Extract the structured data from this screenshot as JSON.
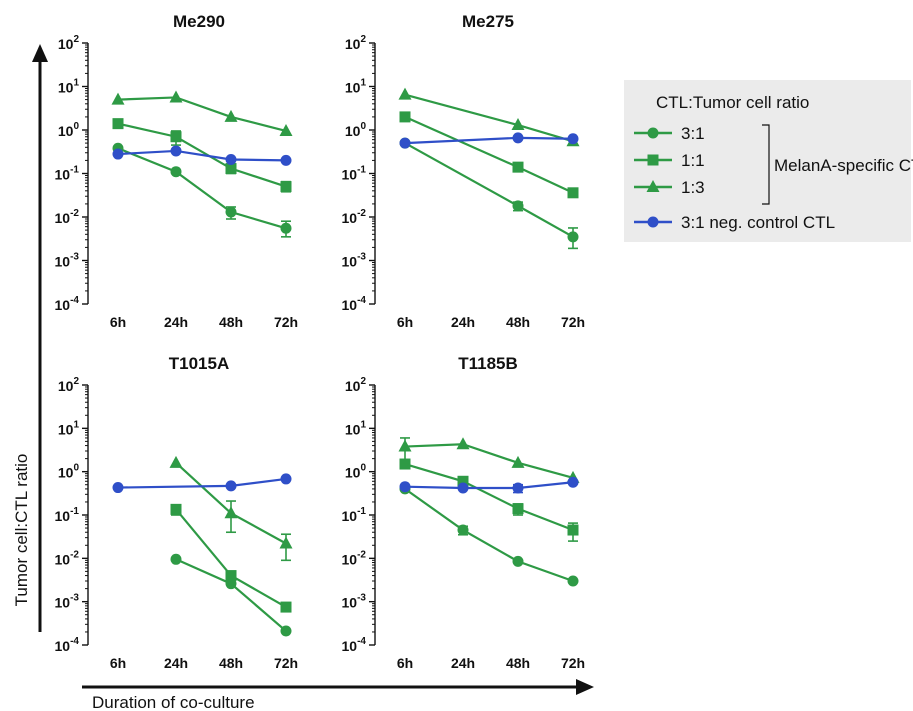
{
  "chart_data": {
    "type": "line",
    "ylabel": "Tumor cell:CTL ratio",
    "xlabel": "Duration of co-culture",
    "yscale": "log",
    "ylim": [
      0.0001,
      100
    ],
    "y_ticks": [
      {
        "base": "10",
        "exp": "2"
      },
      {
        "base": "10",
        "exp": "1"
      },
      {
        "base": "10",
        "exp": "0"
      },
      {
        "base": "10",
        "exp": "-1"
      },
      {
        "base": "10",
        "exp": "-2"
      },
      {
        "base": "10",
        "exp": "-3"
      },
      {
        "base": "10",
        "exp": "-4"
      }
    ],
    "categories": [
      "6h",
      "24h",
      "48h",
      "72h"
    ],
    "legend": {
      "title": "CTL:Tumor cell ratio",
      "bracket_label": "MelanA-specific CTL",
      "entries": [
        {
          "label": "3:1",
          "color": "#2e9a45",
          "marker": "circle"
        },
        {
          "label": "1:1",
          "color": "#2e9a45",
          "marker": "square"
        },
        {
          "label": "1:3",
          "color": "#2e9a45",
          "marker": "triangle"
        },
        {
          "label": "3:1 neg. control CTL",
          "color": "#2f4fc8",
          "marker": "circle"
        }
      ]
    },
    "panels": [
      {
        "title": "Me290",
        "series": [
          {
            "label": "3:1",
            "values": [
              0.38,
              0.11,
              0.013,
              0.0055
            ],
            "err_low": [
              null,
              null,
              0.009,
              0.0035
            ],
            "err_high": [
              null,
              null,
              0.017,
              0.008
            ]
          },
          {
            "label": "1:1",
            "values": [
              1.4,
              0.7,
              0.13,
              0.05
            ],
            "err_low": [
              null,
              0.45,
              0.1,
              0.038
            ],
            "err_high": [
              null,
              0.95,
              0.16,
              0.065
            ]
          },
          {
            "label": "1:3",
            "values": [
              5.0,
              5.6,
              2.0,
              0.95
            ],
            "err_low": [
              null,
              null,
              null,
              null
            ],
            "err_high": [
              null,
              null,
              null,
              null
            ]
          },
          {
            "label": "3:1 neg. control CTL",
            "values": [
              0.28,
              0.33,
              0.21,
              0.2
            ],
            "err_low": [
              null,
              null,
              null,
              null
            ],
            "err_high": [
              null,
              null,
              null,
              null
            ]
          }
        ]
      },
      {
        "title": "Me275",
        "series": [
          {
            "label": "3:1",
            "values": [
              0.5,
              null,
              0.018,
              0.0035
            ],
            "err_low": [
              null,
              null,
              0.014,
              0.0019
            ],
            "err_high": [
              null,
              null,
              0.022,
              0.0056
            ]
          },
          {
            "label": "1:1",
            "values": [
              2.0,
              null,
              0.14,
              0.036
            ],
            "err_low": [
              null,
              null,
              null,
              null
            ],
            "err_high": [
              null,
              null,
              null,
              null
            ]
          },
          {
            "label": "1:3",
            "values": [
              6.5,
              null,
              1.3,
              0.55
            ],
            "err_low": [
              null,
              null,
              null,
              null
            ],
            "err_high": [
              null,
              null,
              null,
              null
            ]
          },
          {
            "label": "3:1 neg. control CTL",
            "values": [
              0.5,
              null,
              0.66,
              0.63
            ],
            "err_low": [
              null,
              null,
              null,
              null
            ],
            "err_high": [
              null,
              null,
              null,
              null
            ]
          }
        ]
      },
      {
        "title": "T1015A",
        "series": [
          {
            "label": "3:1",
            "values": [
              null,
              0.0095,
              0.0026,
              0.00021
            ],
            "err_low": [
              null,
              null,
              null,
              null
            ],
            "err_high": [
              null,
              null,
              null,
              null
            ]
          },
          {
            "label": "1:1",
            "values": [
              null,
              0.135,
              0.004,
              0.00075
            ],
            "err_low": [
              null,
              0.1,
              null,
              null
            ],
            "err_high": [
              null,
              0.17,
              null,
              null
            ]
          },
          {
            "label": "1:3",
            "values": [
              null,
              1.6,
              0.11,
              0.022
            ],
            "err_low": [
              null,
              null,
              0.04,
              0.009
            ],
            "err_high": [
              null,
              null,
              0.21,
              0.036
            ]
          },
          {
            "label": "3:1 neg. control CTL",
            "values": [
              0.43,
              null,
              0.47,
              0.68
            ],
            "err_low": [
              null,
              null,
              null,
              null
            ],
            "err_high": [
              null,
              null,
              null,
              null
            ]
          }
        ]
      },
      {
        "title": "T1185B",
        "series": [
          {
            "label": "3:1",
            "values": [
              0.4,
              0.045,
              0.0085,
              0.003
            ],
            "err_low": [
              null,
              0.035,
              null,
              null
            ],
            "err_high": [
              null,
              0.055,
              null,
              null
            ]
          },
          {
            "label": "1:1",
            "values": [
              1.5,
              0.6,
              0.14,
              0.045
            ],
            "err_low": [
              null,
              null,
              0.1,
              0.025
            ],
            "err_high": [
              null,
              null,
              0.18,
              0.065
            ]
          },
          {
            "label": "1:3",
            "values": [
              3.8,
              4.3,
              1.6,
              0.72
            ],
            "err_low": [
              1.6,
              null,
              null,
              null
            ],
            "err_high": [
              6.0,
              null,
              null,
              null
            ]
          },
          {
            "label": "3:1 neg. control CTL",
            "values": [
              0.45,
              0.42,
              0.42,
              0.57
            ],
            "err_low": [
              null,
              null,
              0.33,
              null
            ],
            "err_high": [
              null,
              null,
              0.5,
              null
            ]
          }
        ]
      }
    ]
  }
}
